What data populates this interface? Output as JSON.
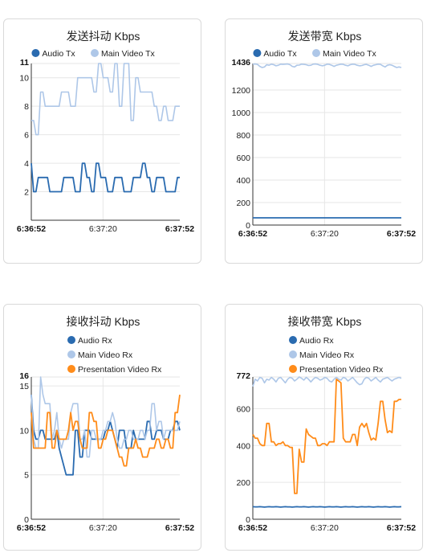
{
  "colors": {
    "audio": "#2a6bb0",
    "main_video": "#aec7e8",
    "presentation": "#ff8c1a",
    "grid": "#e6e6e6",
    "axis": "#333333"
  },
  "chart_data": [
    {
      "type": "line",
      "title": "发送抖动 Kbps",
      "x_ticks": [
        "6:36:52",
        "6:37:20",
        "6:37:52"
      ],
      "y_ticks": [
        "2",
        "4",
        "6",
        "8",
        "10"
      ],
      "y_max_label": "11",
      "ylim": [
        0,
        11
      ],
      "grid": true,
      "legend": "top-center-row",
      "series": [
        {
          "name": "Audio Tx",
          "color": "#2a6bb0",
          "values": [
            4,
            2,
            2,
            3,
            3,
            3,
            3,
            3,
            2,
            2,
            2,
            2,
            2,
            2,
            3,
            3,
            3,
            3,
            3,
            2,
            2,
            2,
            4,
            4,
            3,
            3,
            2,
            2,
            4,
            4,
            3,
            3,
            3,
            2,
            2,
            2,
            3,
            3,
            3,
            3,
            2,
            2,
            2,
            2,
            3,
            3,
            3,
            3,
            4,
            4,
            3,
            3,
            2,
            2,
            3,
            3,
            3,
            3,
            2,
            2,
            2,
            2,
            2,
            3,
            3
          ]
        },
        {
          "name": "Main Video Tx",
          "color": "#aec7e8",
          "values": [
            7,
            7,
            6,
            6,
            9,
            9,
            8,
            8,
            8,
            8,
            8,
            8,
            8,
            9,
            9,
            9,
            9,
            8,
            8,
            8,
            10,
            10,
            10,
            10,
            10,
            10,
            10,
            9,
            9,
            11,
            11,
            10,
            10,
            10,
            9,
            9,
            11,
            11,
            8,
            8,
            11,
            11,
            11,
            7,
            7,
            10,
            10,
            9,
            9,
            9,
            9,
            9,
            9,
            8,
            8,
            7,
            7,
            8,
            8,
            7,
            7,
            7,
            8,
            8,
            8
          ]
        }
      ]
    },
    {
      "type": "line",
      "title": "发送带宽 Kbps",
      "x_ticks": [
        "6:36:52",
        "6:37:20",
        "6:37:52"
      ],
      "y_ticks": [
        "0",
        "200",
        "400",
        "600",
        "800",
        "1000",
        "1200"
      ],
      "y_max_label": "1436",
      "ylim": [
        0,
        1436
      ],
      "grid": true,
      "legend": "top-center-row",
      "series": [
        {
          "name": "Audio Tx",
          "color": "#2a6bb0",
          "values": [
            64,
            64,
            64,
            64,
            64,
            64,
            64,
            64,
            64,
            64,
            64,
            64,
            64,
            64,
            64,
            64,
            64,
            64,
            64,
            64,
            64,
            64,
            64,
            64,
            64,
            64,
            64,
            64,
            64,
            64,
            64,
            64,
            64,
            64,
            64,
            64,
            64,
            64,
            64,
            64,
            64,
            64,
            64,
            64,
            64,
            64,
            64,
            64,
            64,
            64,
            64,
            64,
            64,
            64,
            64,
            64,
            64,
            64,
            64,
            64,
            64,
            64,
            64,
            64,
            64
          ]
        },
        {
          "name": "Main Video Tx",
          "color": "#aec7e8",
          "values": [
            1430,
            1432,
            1428,
            1410,
            1400,
            1405,
            1425,
            1420,
            1430,
            1425,
            1415,
            1420,
            1430,
            1428,
            1430,
            1432,
            1425,
            1410,
            1405,
            1420,
            1422,
            1430,
            1428,
            1425,
            1418,
            1420,
            1430,
            1432,
            1428,
            1420,
            1415,
            1420,
            1430,
            1428,
            1420,
            1410,
            1420,
            1425,
            1430,
            1428,
            1420,
            1415,
            1425,
            1430,
            1428,
            1420,
            1415,
            1418,
            1425,
            1428,
            1420,
            1410,
            1420,
            1425,
            1430,
            1428,
            1415,
            1405,
            1420,
            1425,
            1420,
            1410,
            1400,
            1405,
            1400
          ]
        }
      ]
    },
    {
      "type": "line",
      "title": "接收抖动 Kbps",
      "x_ticks": [
        "6:36:52",
        "6:37:20",
        "6:37:52"
      ],
      "y_ticks": [
        "0",
        "5",
        "10",
        "15"
      ],
      "y_max_label": "16",
      "ylim": [
        0,
        16
      ],
      "grid": true,
      "legend": "top-center-column",
      "series": [
        {
          "name": "Audio Rx",
          "color": "#2a6bb0",
          "values": [
            14,
            10,
            9,
            9,
            10,
            10,
            9,
            9,
            9,
            9,
            9,
            10,
            8,
            7,
            6,
            5,
            5,
            5,
            5,
            10,
            10,
            7,
            7,
            10,
            10,
            10,
            9,
            9,
            9,
            9,
            9,
            9,
            10,
            10,
            11,
            10,
            9,
            8,
            10,
            10,
            10,
            8,
            8,
            8,
            10,
            9,
            9,
            9,
            9,
            9,
            11,
            11,
            9,
            9,
            10,
            10,
            10,
            9,
            9,
            9,
            10,
            10,
            11,
            11,
            10
          ]
        },
        {
          "name": "Main Video Rx",
          "color": "#aec7e8",
          "values": [
            14,
            9,
            8,
            8,
            16,
            14,
            13,
            13,
            13,
            9,
            10,
            12,
            9,
            8,
            9,
            9,
            9,
            12,
            13,
            13,
            13,
            9,
            9,
            10,
            7,
            7,
            10,
            10,
            9,
            9,
            9,
            10,
            10,
            11,
            11,
            12,
            11,
            9,
            8,
            8,
            9,
            9,
            10,
            10,
            9,
            9,
            9,
            10,
            10,
            9,
            10,
            10,
            13,
            13,
            10,
            11,
            11,
            9,
            10,
            10,
            10,
            10,
            10,
            10,
            11
          ]
        },
        {
          "name": "Presentation Video Rx",
          "color": "#ff8c1a",
          "values": [
            12,
            8,
            8,
            8,
            8,
            8,
            8,
            12,
            12,
            8,
            8,
            10,
            9,
            9,
            9,
            9,
            10,
            12,
            10,
            11,
            11,
            9,
            8,
            8,
            8,
            12,
            12,
            11,
            11,
            8,
            8,
            9,
            9,
            10,
            10,
            10,
            9,
            8,
            7,
            7,
            6,
            6,
            8,
            8,
            8,
            9,
            8,
            8,
            7,
            7,
            7,
            8,
            8,
            8,
            9,
            9,
            8,
            8,
            9,
            9,
            8,
            8,
            12,
            12,
            14
          ]
        }
      ]
    },
    {
      "type": "line",
      "title": "接收带宽 Kbps",
      "x_ticks": [
        "6:36:52",
        "6:37:20",
        "6:37:52"
      ],
      "y_ticks": [
        "0",
        "200",
        "400",
        "600"
      ],
      "y_max_label": "772",
      "ylim": [
        0,
        772
      ],
      "grid": true,
      "legend": "top-center-column",
      "series": [
        {
          "name": "Audio Rx",
          "color": "#2a6bb0",
          "values": [
            68,
            67,
            67,
            68,
            67,
            66,
            67,
            68,
            67,
            67,
            68,
            67,
            66,
            67,
            68,
            67,
            67,
            66,
            67,
            68,
            67,
            67,
            68,
            67,
            66,
            67,
            68,
            67,
            67,
            68,
            67,
            66,
            67,
            68,
            67,
            67,
            68,
            67,
            66,
            67,
            68,
            67,
            67,
            68,
            67,
            66,
            67,
            68,
            67,
            67,
            68,
            67,
            66,
            67,
            68,
            67,
            67,
            68,
            67,
            66,
            67,
            68,
            67,
            67,
            68
          ]
        },
        {
          "name": "Main Video Rx",
          "color": "#aec7e8",
          "values": [
            720,
            760,
            750,
            770,
            765,
            740,
            760,
            755,
            770,
            760,
            745,
            765,
            770,
            755,
            740,
            760,
            770,
            765,
            750,
            760,
            772,
            765,
            755,
            770,
            760,
            745,
            760,
            770,
            765,
            755,
            760,
            770,
            765,
            750,
            745,
            760,
            770,
            760,
            755,
            770,
            765,
            750,
            760,
            770,
            755,
            740,
            730,
            735,
            760,
            770,
            765,
            750,
            760,
            770,
            755,
            745,
            760,
            765,
            770,
            760,
            750,
            760,
            765,
            770,
            765
          ]
        },
        {
          "name": "Presentation Video Rx",
          "color": "#ff8c1a",
          "values": [
            460,
            440,
            440,
            410,
            400,
            400,
            520,
            520,
            420,
            420,
            400,
            410,
            410,
            420,
            400,
            400,
            390,
            390,
            140,
            140,
            380,
            310,
            310,
            490,
            460,
            450,
            440,
            440,
            400,
            400,
            410,
            410,
            400,
            420,
            420,
            420,
            760,
            750,
            740,
            440,
            420,
            420,
            420,
            460,
            460,
            400,
            500,
            520,
            500,
            520,
            470,
            430,
            440,
            430,
            520,
            640,
            640,
            540,
            470,
            480,
            470,
            640,
            640,
            650,
            650
          ]
        }
      ]
    }
  ]
}
